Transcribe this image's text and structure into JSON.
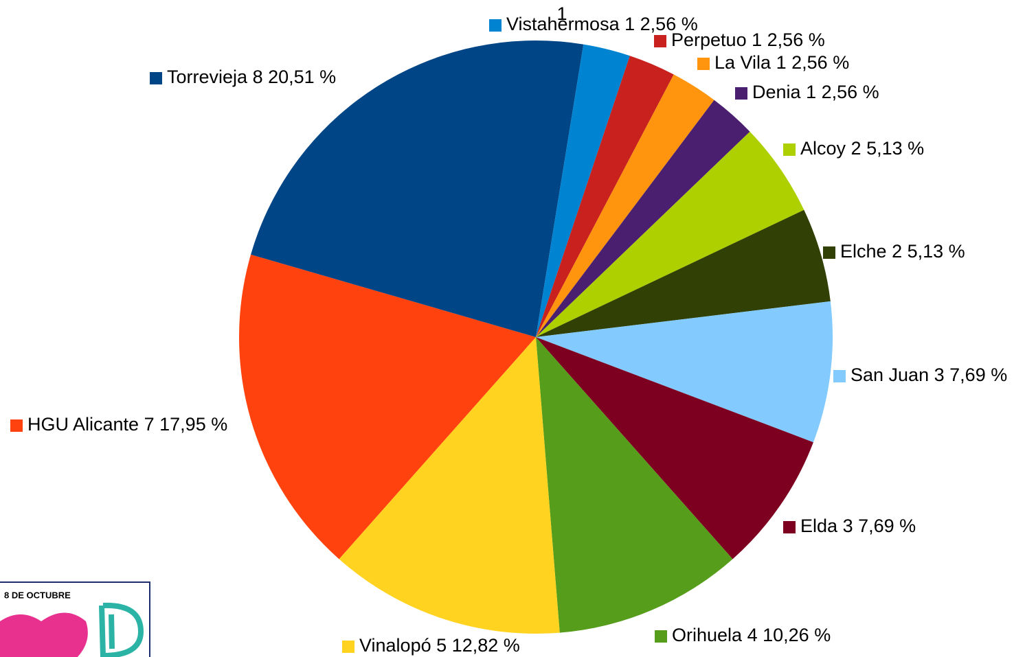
{
  "chart_data": {
    "type": "pie",
    "categories": [
      null,
      "Vistahermosa",
      "Perpetuo",
      "La Vila",
      "Denia",
      "Alcoy",
      "Elche",
      "San Juan",
      "Elda",
      "Orihuela",
      "Vinalopó",
      "HGU Alicante",
      "Torrevieja"
    ],
    "values": [
      1,
      1,
      1,
      1,
      1,
      2,
      2,
      3,
      3,
      4,
      5,
      7,
      8
    ],
    "percentages": [
      2.56,
      2.56,
      2.56,
      2.56,
      2.56,
      5.13,
      5.13,
      7.69,
      7.69,
      10.26,
      12.82,
      17.95,
      20.51
    ],
    "percentage_labels": [
      "2,56 %",
      "2,56 %",
      "2,56 %",
      "2,56 %",
      "2,56 %",
      "5,13 %",
      "5,13 %",
      "7,69 %",
      "7,69 %",
      "10,26 %",
      "12,82 %",
      "17,95 %",
      "20,51 %"
    ],
    "colors": [
      "#004586",
      "#0084d1",
      "#c9211e",
      "#ff950e",
      "#4b1f6f",
      "#aecf00",
      "#314004",
      "#83caff",
      "#7e0021",
      "#579d1c",
      "#ffd320",
      "#ff420e",
      "#004586"
    ]
  },
  "logo_text": "8 DE OCTUBRE"
}
